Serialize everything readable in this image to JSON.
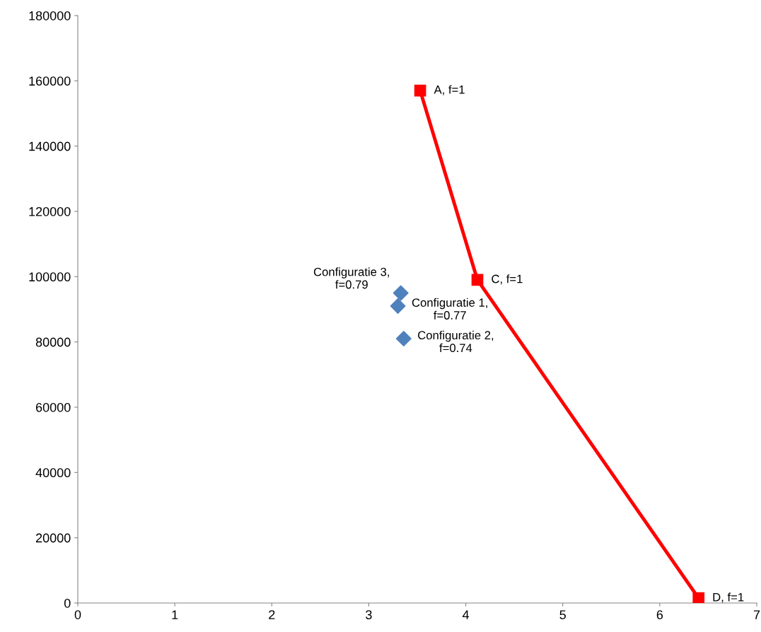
{
  "chart_data": {
    "type": "line",
    "series": [
      {
        "color": "#ff0000",
        "marker": "square",
        "x": [
          3.53,
          4.12,
          6.4
        ],
        "values": [
          157000,
          99000,
          1500
        ]
      },
      {
        "type": "scatter",
        "color": "#4f81bd",
        "marker": "diamond",
        "x": [
          3.3,
          3.36,
          3.33
        ],
        "values": [
          91000,
          81000,
          95000
        ]
      }
    ],
    "annotations": [
      {
        "text": "A, f=1",
        "x": 3.53,
        "y": 157000
      },
      {
        "text": "C, f=1",
        "x": 4.12,
        "y": 99000
      },
      {
        "text": "D, f=1",
        "x": 6.4,
        "y": 1500
      },
      {
        "text": "Configuratie 1,\nf=0.77",
        "x": 3.3,
        "y": 91000
      },
      {
        "text": "Configuratie 2,\nf=0.74",
        "x": 3.36,
        "y": 81000
      },
      {
        "text": "Configuratie 3,\nf=0.79",
        "x": 3.33,
        "y": 95000
      }
    ],
    "xlim": [
      0,
      7
    ],
    "xticks": [
      0,
      1,
      2,
      3,
      4,
      5,
      6,
      7
    ],
    "ylim": [
      0,
      180000
    ],
    "yticks": [
      0,
      20000,
      40000,
      60000,
      80000,
      100000,
      120000,
      140000,
      160000,
      180000
    ],
    "grid": false,
    "legend": false
  }
}
